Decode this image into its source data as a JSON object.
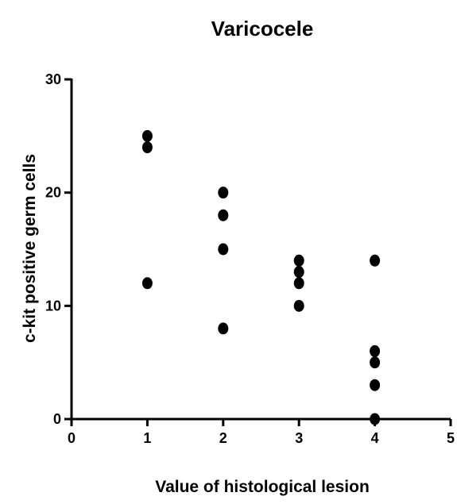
{
  "chart_data": {
    "type": "scatter",
    "title": "Varicocele",
    "xlabel": "Value of histological lesion",
    "ylabel": "c-kit positive germ cells",
    "xlim": [
      0,
      5
    ],
    "ylim": [
      0,
      30
    ],
    "xticks": [
      "0",
      "1",
      "2",
      "3",
      "4",
      "5"
    ],
    "yticks": [
      "0",
      "10",
      "20",
      "30"
    ],
    "grid": false,
    "legend": "none",
    "marker_color": "#000000",
    "points": [
      {
        "x": 1,
        "y": 25
      },
      {
        "x": 1,
        "y": 24
      },
      {
        "x": 1,
        "y": 12
      },
      {
        "x": 2,
        "y": 20
      },
      {
        "x": 2,
        "y": 18
      },
      {
        "x": 2,
        "y": 15
      },
      {
        "x": 2,
        "y": 8
      },
      {
        "x": 3,
        "y": 14
      },
      {
        "x": 3,
        "y": 13
      },
      {
        "x": 3,
        "y": 12
      },
      {
        "x": 3,
        "y": 10
      },
      {
        "x": 4,
        "y": 14
      },
      {
        "x": 4,
        "y": 6
      },
      {
        "x": 4,
        "y": 5
      },
      {
        "x": 4,
        "y": 3
      },
      {
        "x": 4,
        "y": 0
      }
    ]
  }
}
